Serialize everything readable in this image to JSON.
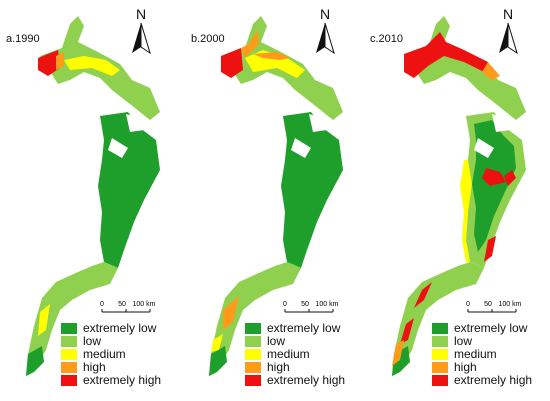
{
  "panels": [
    {
      "title": "a.1990"
    },
    {
      "title": "b.2000"
    },
    {
      "title": "c.2010"
    }
  ],
  "north_label": "N",
  "scale": {
    "labels": [
      "0",
      "50",
      "100 km"
    ]
  },
  "legend": [
    {
      "label": "extremely low",
      "color": "#1e9e2a"
    },
    {
      "label": "low",
      "color": "#8fd14f"
    },
    {
      "label": "medium",
      "color": "#ffff00"
    },
    {
      "label": "high",
      "color": "#ff9a1a"
    },
    {
      "label": "extremely high",
      "color": "#ee1111"
    }
  ]
}
